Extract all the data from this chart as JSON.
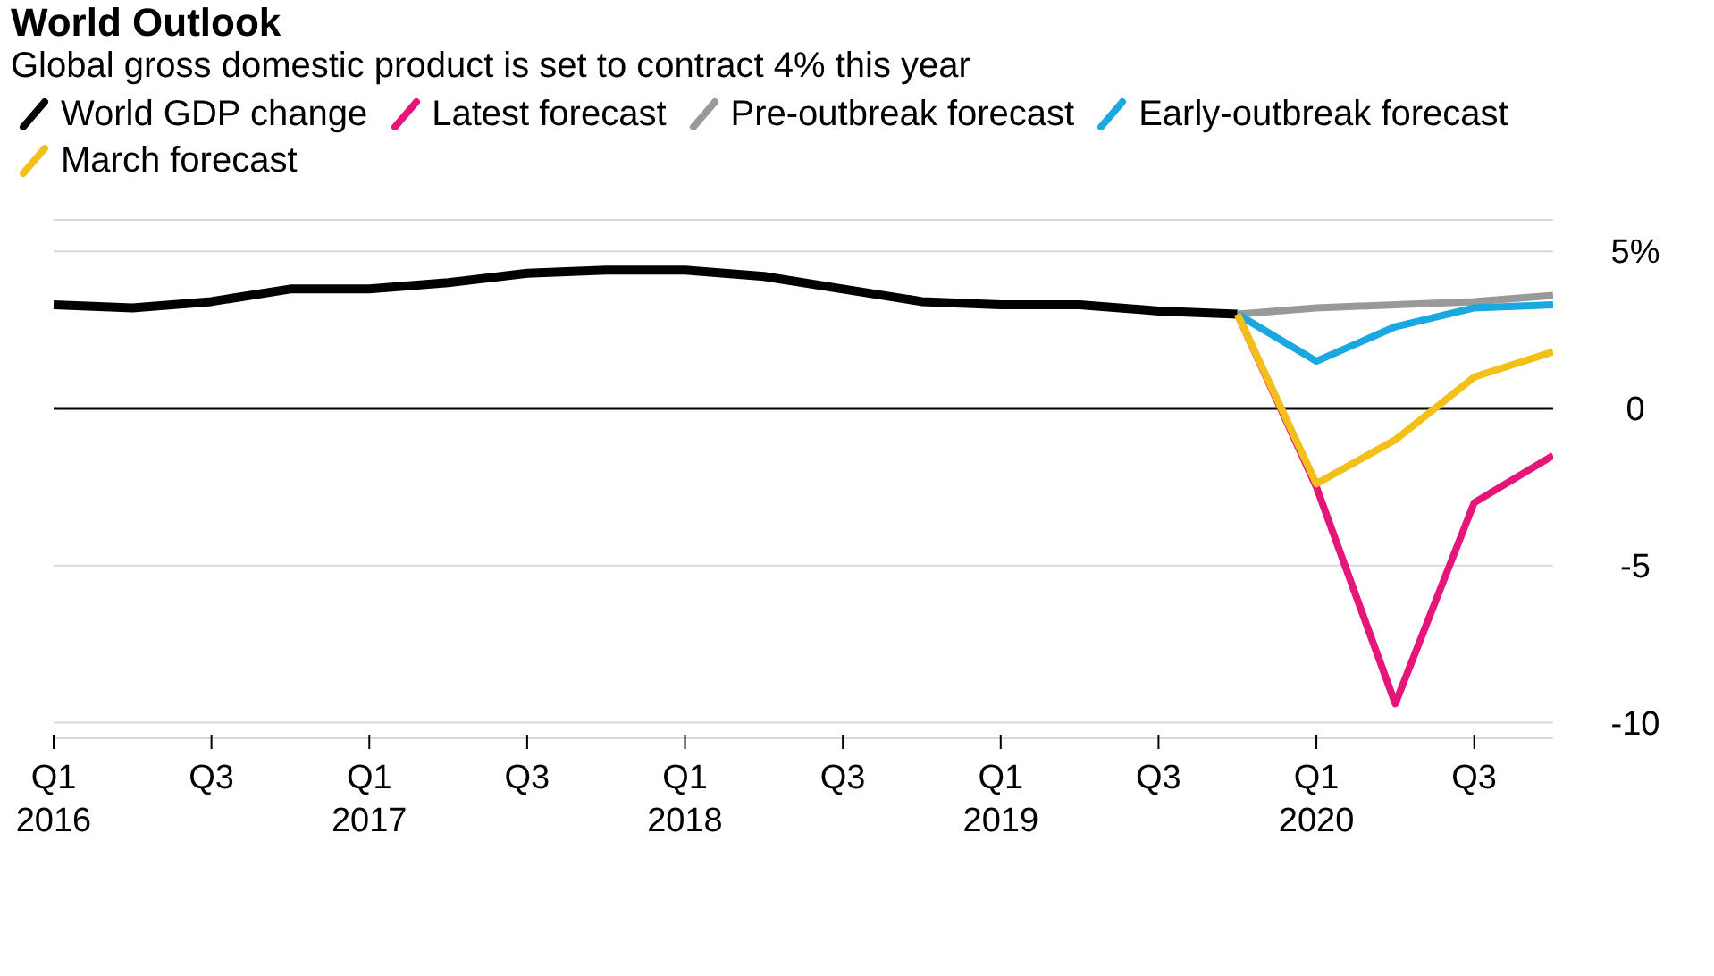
{
  "chart_data": {
    "type": "line",
    "title": "World Outlook",
    "subtitle": "Global gross domestic product is set to contract 4% this year",
    "legend": "top left",
    "grid": "y",
    "line_style": "solid",
    "xlim": [
      "2016-01",
      "2020-10"
    ],
    "xticks": [
      {
        "value": "2016-01",
        "label": "Q1 2016"
      },
      {
        "value": "2016-07",
        "label": "Q3"
      },
      {
        "value": "2017-01",
        "label": "Q1 2017"
      },
      {
        "value": "2017-07",
        "label": "Q3"
      },
      {
        "value": "2018-01",
        "label": "Q1 2018"
      },
      {
        "value": "2018-07",
        "label": "Q3"
      },
      {
        "value": "2019-01",
        "label": "Q1 2019"
      },
      {
        "value": "2019-07",
        "label": "Q3"
      },
      {
        "value": "2020-01",
        "label": "Q1 2020"
      },
      {
        "value": "2020-07",
        "label": "Q3"
      }
    ],
    "ylim": [
      -10.5,
      6
    ],
    "yticks": [
      -10,
      -5,
      0,
      {
        "value": 5,
        "label": "5%"
      }
    ],
    "series": [
      {
        "name": "World GDP change",
        "color": "#000000",
        "x": [
          "2016-01",
          "2016-04",
          "2016-07",
          "2016-10",
          "2017-01",
          "2017-04",
          "2017-07",
          "2017-10",
          "2018-01",
          "2018-04",
          "2018-07",
          "2018-10",
          "2019-01",
          "2019-04",
          "2019-07",
          "2019-10"
        ],
        "values": [
          3.3,
          3.2,
          3.4,
          3.8,
          3.8,
          4.0,
          4.3,
          4.4,
          4.4,
          4.2,
          3.8,
          3.4,
          3.3,
          3.3,
          3.1,
          3.0
        ]
      },
      {
        "name": "Latest forecast",
        "color": "#e5157a",
        "x": [
          "2019-10",
          "2020-01",
          "2020-04",
          "2020-07",
          "2020-10"
        ],
        "values": [
          3.0,
          -2.5,
          -9.4,
          -3.0,
          -1.5
        ]
      },
      {
        "name": "Pre-outbreak forecast",
        "color": "#999999",
        "x": [
          "2019-10",
          "2020-01",
          "2020-04",
          "2020-07",
          "2020-10"
        ],
        "values": [
          3.0,
          3.2,
          3.3,
          3.4,
          3.6
        ]
      },
      {
        "name": "Early-outbreak forecast",
        "color": "#1ba7e0",
        "x": [
          "2019-10",
          "2020-01",
          "2020-04",
          "2020-07",
          "2020-10"
        ],
        "values": [
          3.0,
          1.5,
          2.6,
          3.2,
          3.3
        ]
      },
      {
        "name": "March forecast",
        "color": "#f2c018",
        "x": [
          "2019-10",
          "2020-01",
          "2020-04",
          "2020-07",
          "2020-10"
        ],
        "values": [
          3.0,
          -2.4,
          -1.0,
          1.0,
          1.8
        ]
      }
    ]
  }
}
